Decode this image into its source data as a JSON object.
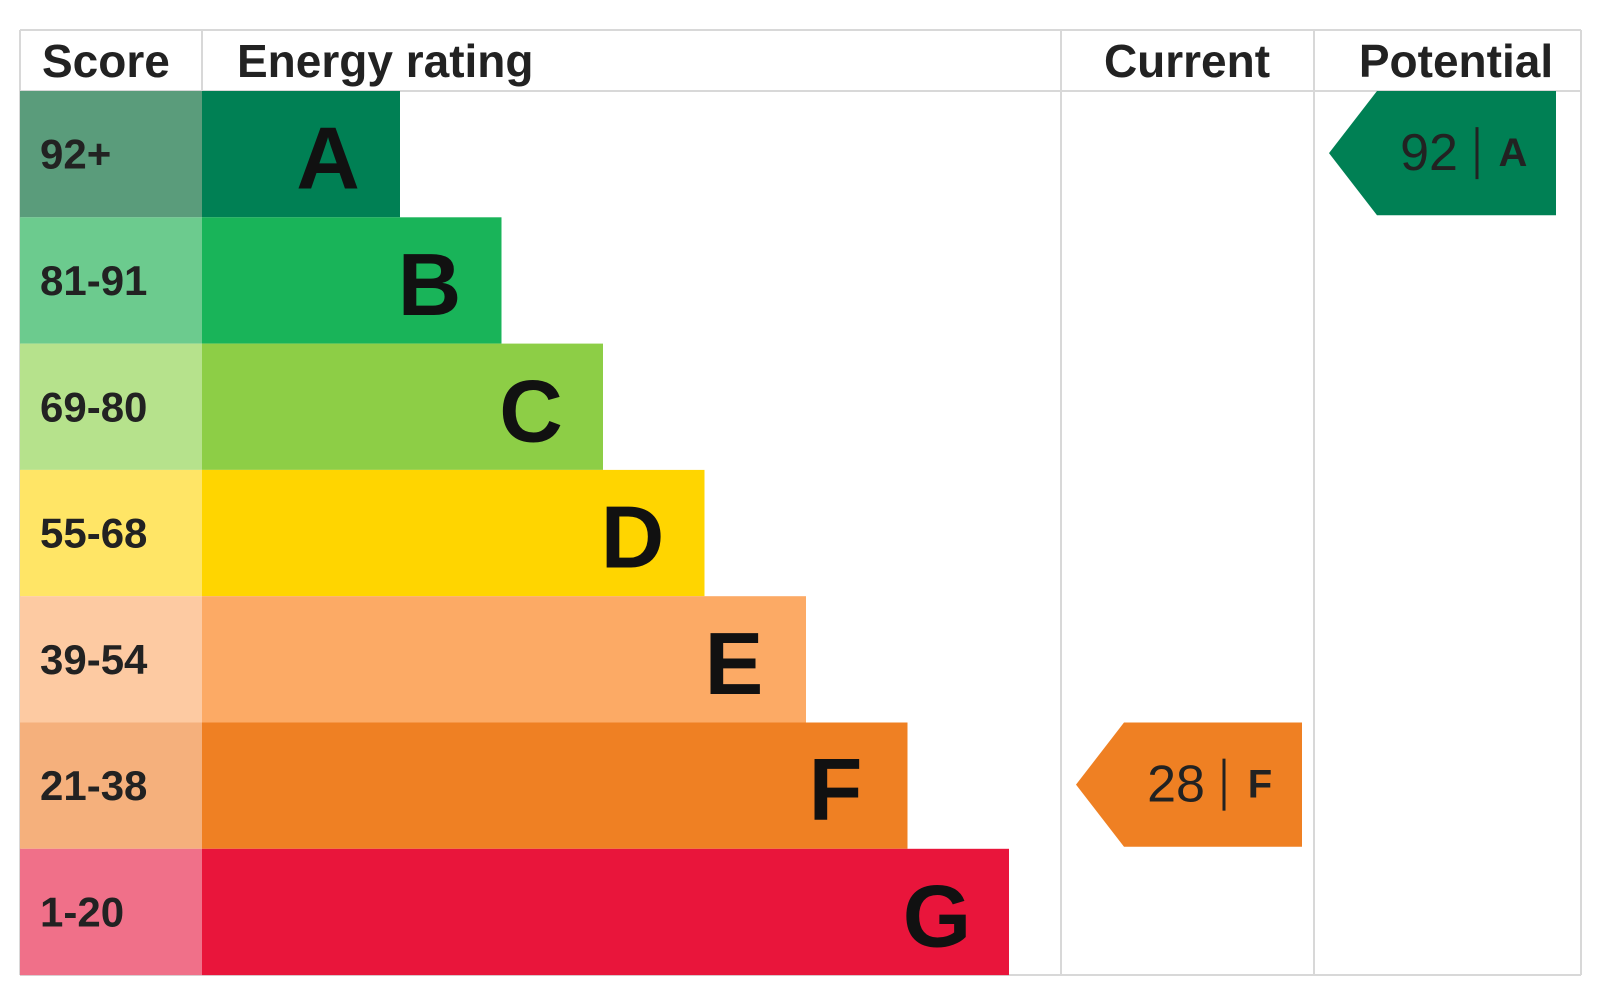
{
  "header": {
    "score": "Score",
    "energy_rating": "Energy rating",
    "current": "Current",
    "potential": "Potential"
  },
  "bands": [
    {
      "score": "92+",
      "letter": "A",
      "color": "#008054",
      "score_color": "#5a9c7b"
    },
    {
      "score": "81-91",
      "letter": "B",
      "color": "#19b459",
      "score_color": "#6ccb8e"
    },
    {
      "score": "69-80",
      "letter": "C",
      "color": "#8dce46",
      "score_color": "#b6e28c"
    },
    {
      "score": "55-68",
      "letter": "D",
      "color": "#ffd500",
      "score_color": "#ffe566"
    },
    {
      "score": "39-54",
      "letter": "E",
      "color": "#fcaa65",
      "score_color": "#fdcaa2"
    },
    {
      "score": "21-38",
      "letter": "F",
      "color": "#ef8023",
      "score_color": "#f5b07c"
    },
    {
      "score": "1-20",
      "letter": "G",
      "color": "#e9153b",
      "score_color": "#f07089"
    }
  ],
  "current": {
    "value": 28,
    "rating": "F"
  },
  "potential": {
    "value": 92,
    "rating": "A"
  }
}
